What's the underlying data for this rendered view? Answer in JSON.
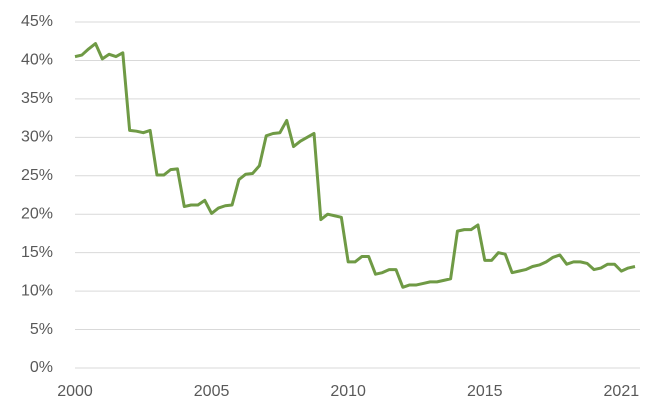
{
  "chart_data": {
    "type": "line",
    "categories": [
      "2000",
      null,
      null,
      null,
      null,
      null,
      null,
      null,
      null,
      null,
      null,
      null,
      null,
      null,
      null,
      null,
      null,
      null,
      null,
      null,
      "2005",
      null,
      null,
      null,
      null,
      null,
      null,
      null,
      null,
      null,
      null,
      null,
      null,
      null,
      null,
      null,
      null,
      null,
      null,
      null,
      "2010",
      null,
      null,
      null,
      null,
      null,
      null,
      null,
      null,
      null,
      null,
      null,
      null,
      null,
      null,
      null,
      null,
      null,
      null,
      null,
      "2015",
      null,
      null,
      null,
      null,
      null,
      null,
      null,
      null,
      null,
      null,
      null,
      null,
      null,
      null,
      null,
      null,
      null,
      null,
      null,
      "2021",
      null,
      null
    ],
    "series": [
      {
        "color": "#6f9a45",
        "values": [
          40.5,
          40.7,
          41.5,
          42.2,
          40.2,
          40.8,
          40.5,
          41.0,
          30.9,
          30.8,
          30.6,
          30.9,
          25.1,
          25.1,
          25.8,
          25.9,
          21.0,
          21.2,
          21.2,
          21.8,
          20.1,
          20.8,
          21.1,
          21.2,
          24.5,
          25.2,
          25.3,
          26.3,
          30.2,
          30.5,
          30.6,
          32.2,
          28.8,
          29.5,
          30.0,
          30.5,
          19.3,
          20.0,
          19.8,
          19.6,
          13.8,
          13.8,
          14.5,
          14.5,
          12.2,
          12.4,
          12.8,
          12.8,
          10.5,
          10.8,
          10.8,
          11.0,
          11.2,
          11.2,
          11.4,
          11.6,
          17.8,
          18.0,
          18.0,
          18.6,
          14.0,
          14.0,
          15.0,
          14.8,
          12.4,
          12.6,
          12.8,
          13.2,
          13.4,
          13.8,
          14.4,
          14.7,
          13.5,
          13.8,
          13.8,
          13.6,
          12.8,
          13.0,
          13.5,
          13.5,
          12.6,
          13.0,
          13.2
        ]
      }
    ],
    "ylim": [
      0,
      45
    ],
    "yticks": [
      {
        "value": 0,
        "label": "0%"
      },
      {
        "value": 5,
        "label": "5%"
      },
      {
        "value": 10,
        "label": "10%"
      },
      {
        "value": 15,
        "label": "15%"
      },
      {
        "value": 20,
        "label": "20%"
      },
      {
        "value": 25,
        "label": "25%"
      },
      {
        "value": 30,
        "label": "30%"
      },
      {
        "value": 35,
        "label": "35%"
      },
      {
        "value": 40,
        "label": "40%"
      },
      {
        "value": 45,
        "label": "45%"
      }
    ],
    "grid": true
  }
}
